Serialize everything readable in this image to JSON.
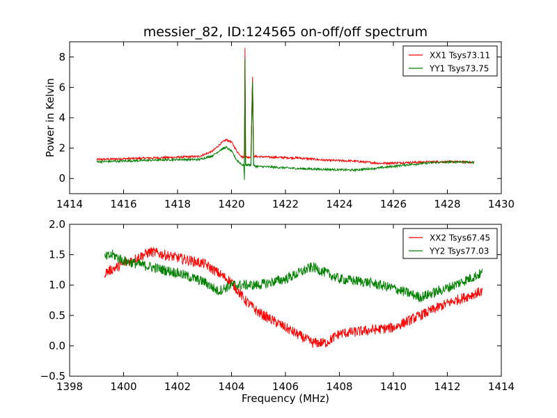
{
  "figure_title": "messier_82, ID:124565 on-off/off spectrum",
  "chart_data": [
    {
      "type": "line",
      "title": "messier_82, ID:124565 on-off/off spectrum",
      "xlabel": "",
      "ylabel": "Power in Kelvin",
      "xlim": [
        1414,
        1430
      ],
      "ylim": [
        -1,
        9
      ],
      "xticks": [
        "1414",
        "1416",
        "1418",
        "1420",
        "1422",
        "1424",
        "1426",
        "1428",
        "1430"
      ],
      "yticks": [
        "0",
        "2",
        "4",
        "6",
        "8"
      ],
      "grid": false,
      "legend_position": "top-right",
      "series": [
        {
          "name": "XX1 Tsys73.11",
          "color": "#ff0000",
          "x": [
            1415.0,
            1416.0,
            1417.0,
            1418.0,
            1418.8,
            1419.3,
            1419.6,
            1419.8,
            1420.0,
            1420.2,
            1420.4,
            1420.48,
            1420.5,
            1420.52,
            1420.56,
            1420.62,
            1420.72,
            1420.78,
            1420.82,
            1420.9,
            1421.5,
            1422.5,
            1423.5,
            1424.5,
            1425.5,
            1426.5,
            1427.5,
            1428.5,
            1429.0
          ],
          "y": [
            1.25,
            1.3,
            1.35,
            1.4,
            1.45,
            1.8,
            2.3,
            2.55,
            2.4,
            1.8,
            1.4,
            1.4,
            8.6,
            1.5,
            1.4,
            1.4,
            1.4,
            6.7,
            1.45,
            1.45,
            1.4,
            1.35,
            1.2,
            1.15,
            1.0,
            1.05,
            1.1,
            1.1,
            1.05
          ]
        },
        {
          "name": "YY1 Tsys73.75",
          "color": "#008000",
          "x": [
            1415.0,
            1416.0,
            1417.0,
            1418.0,
            1418.8,
            1419.3,
            1419.6,
            1419.8,
            1420.0,
            1420.2,
            1420.4,
            1420.46,
            1420.48,
            1420.5,
            1420.52,
            1420.56,
            1420.62,
            1420.72,
            1420.78,
            1420.82,
            1420.9,
            1421.5,
            1422.5,
            1423.5,
            1424.5,
            1425.5,
            1426.5,
            1427.5,
            1428.5,
            1429.0
          ],
          "y": [
            1.1,
            1.15,
            1.2,
            1.25,
            1.25,
            1.5,
            1.9,
            2.05,
            1.8,
            1.2,
            0.9,
            0.85,
            -0.1,
            7.9,
            0.9,
            0.9,
            0.9,
            0.9,
            6.4,
            0.85,
            0.8,
            0.75,
            0.65,
            0.6,
            0.55,
            0.7,
            0.9,
            1.05,
            1.1,
            1.05
          ]
        }
      ]
    },
    {
      "type": "line",
      "title": "",
      "xlabel": "Frequency (MHz)",
      "ylabel": "",
      "xlim": [
        1398,
        1414
      ],
      "ylim": [
        -0.5,
        2.0
      ],
      "xticks": [
        "1398",
        "1400",
        "1402",
        "1404",
        "1406",
        "1408",
        "1410",
        "1412",
        "1414"
      ],
      "yticks": [
        "−0.5",
        "0.0",
        "0.5",
        "1.0",
        "1.5",
        "2.0"
      ],
      "grid": false,
      "legend_position": "top-right",
      "series": [
        {
          "name": "XX2 Tsys67.45",
          "color": "#ff0000",
          "x": [
            1399.3,
            1400.0,
            1401.0,
            1402.0,
            1403.0,
            1404.0,
            1404.5,
            1405.0,
            1406.0,
            1407.0,
            1407.5,
            1408.0,
            1409.0,
            1410.0,
            1411.0,
            1412.0,
            1413.3
          ],
          "y": [
            1.2,
            1.35,
            1.55,
            1.45,
            1.35,
            1.05,
            0.75,
            0.55,
            0.3,
            0.05,
            0.05,
            0.2,
            0.25,
            0.3,
            0.5,
            0.7,
            0.9
          ]
        },
        {
          "name": "YY2 Tsys77.03",
          "color": "#008000",
          "x": [
            1399.3,
            1399.6,
            1400.0,
            1401.0,
            1402.0,
            1403.0,
            1403.5,
            1404.0,
            1405.0,
            1406.0,
            1407.0,
            1408.0,
            1409.0,
            1410.0,
            1411.0,
            1412.0,
            1413.3
          ],
          "y": [
            1.45,
            1.5,
            1.4,
            1.3,
            1.2,
            1.05,
            0.9,
            1.0,
            1.0,
            1.1,
            1.3,
            1.1,
            1.05,
            0.95,
            0.8,
            0.95,
            1.2
          ]
        }
      ]
    }
  ]
}
